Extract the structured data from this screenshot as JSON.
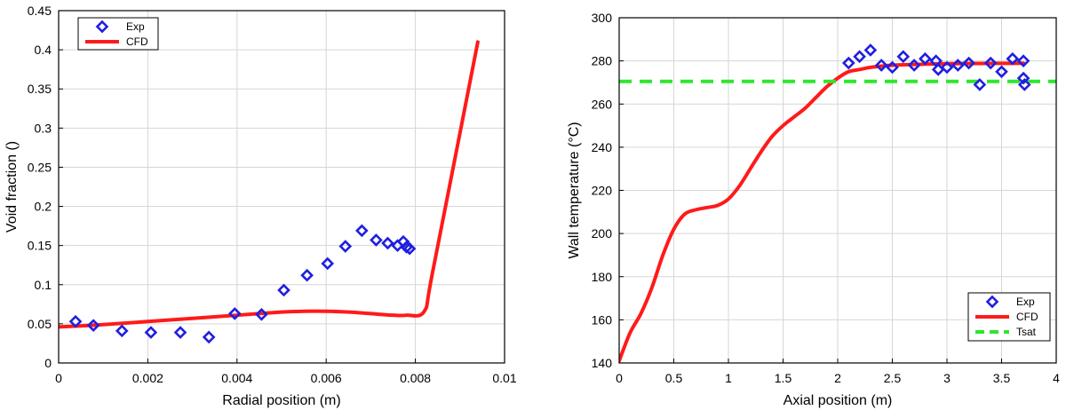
{
  "chart_data": [
    {
      "type": "scatter",
      "xlabel": "Radial position (m)",
      "ylabel": "Void fraction ()",
      "xlim": [
        0,
        0.01
      ],
      "ylim": [
        0,
        0.45
      ],
      "xticks": [
        "0",
        "0.002",
        "0.004",
        "0.006",
        "0.008",
        "0.01"
      ],
      "yticks": [
        "0",
        "0.05",
        "0.1",
        "0.15",
        "0.2",
        "0.25",
        "0.3",
        "0.35",
        "0.4",
        "0.45"
      ],
      "grid": true,
      "legend_position": "top-left",
      "series": [
        {
          "name": "Exp",
          "kind": "marker",
          "color": "#1f1fe0",
          "x": [
            0.00038,
            0.00078,
            0.00142,
            0.00207,
            0.00273,
            0.00337,
            0.00395,
            0.00455,
            0.00505,
            0.00557,
            0.00603,
            0.00643,
            0.0068,
            0.00712,
            0.00738,
            0.0076,
            0.00773,
            0.0078,
            0.00787
          ],
          "y": [
            0.053,
            0.048,
            0.041,
            0.039,
            0.039,
            0.033,
            0.063,
            0.062,
            0.093,
            0.112,
            0.127,
            0.149,
            0.169,
            0.157,
            0.153,
            0.15,
            0.155,
            0.148,
            0.146
          ]
        },
        {
          "name": "CFD",
          "kind": "line",
          "color": "#ff1a1a",
          "x": [
            0,
            0.001,
            0.002,
            0.003,
            0.004,
            0.005,
            0.0055,
            0.006,
            0.0065,
            0.007,
            0.0075,
            0.0078,
            0.0082,
            0.0084,
            0.0094
          ],
          "y": [
            0.046,
            0.049,
            0.053,
            0.057,
            0.061,
            0.065,
            0.066,
            0.066,
            0.065,
            0.063,
            0.061,
            0.061,
            0.066,
            0.12,
            0.41
          ]
        }
      ]
    },
    {
      "type": "scatter",
      "xlabel": "Axial position (m)",
      "ylabel": "Wall temperature (°C)",
      "xlim": [
        0,
        4
      ],
      "ylim": [
        140,
        300
      ],
      "xticks": [
        "0",
        "0.5",
        "1",
        "1.5",
        "2",
        "2.5",
        "3",
        "3.5",
        "4"
      ],
      "yticks": [
        "140",
        "160",
        "180",
        "200",
        "220",
        "240",
        "260",
        "280",
        "300"
      ],
      "grid": true,
      "legend_position": "bottom-right",
      "series": [
        {
          "name": "Exp",
          "kind": "marker",
          "color": "#1f1fe0",
          "x": [
            2.1,
            2.2,
            2.3,
            2.4,
            2.5,
            2.6,
            2.7,
            2.8,
            2.9,
            2.92,
            3.0,
            3.1,
            3.2,
            3.3,
            3.4,
            3.5,
            3.6,
            3.7,
            3.7,
            3.71
          ],
          "y": [
            279,
            282,
            285,
            278,
            277,
            282,
            278,
            281,
            280,
            276,
            277,
            278,
            279,
            269,
            279,
            275,
            281,
            280,
            272,
            269
          ]
        },
        {
          "name": "CFD",
          "kind": "line",
          "color": "#ff1a1a",
          "x": [
            0,
            0.1,
            0.2,
            0.3,
            0.4,
            0.5,
            0.6,
            0.7,
            0.8,
            0.9,
            1.0,
            1.1,
            1.2,
            1.3,
            1.4,
            1.5,
            1.6,
            1.7,
            1.8,
            1.9,
            2.0,
            2.1,
            2.2,
            2.3,
            2.5,
            2.8,
            3.0,
            3.3,
            3.7
          ],
          "y": [
            141,
            154,
            163,
            175,
            190,
            202,
            209,
            211,
            212,
            213,
            216,
            222,
            230,
            238,
            245,
            250,
            254,
            258,
            263,
            268,
            272,
            275,
            276,
            277,
            278,
            278.5,
            278.7,
            278.8,
            278.9
          ]
        },
        {
          "name": "Tsat",
          "kind": "dashed",
          "color": "#2ee62e",
          "x": [
            0,
            4
          ],
          "y": [
            270.5,
            270.5
          ]
        }
      ]
    }
  ]
}
